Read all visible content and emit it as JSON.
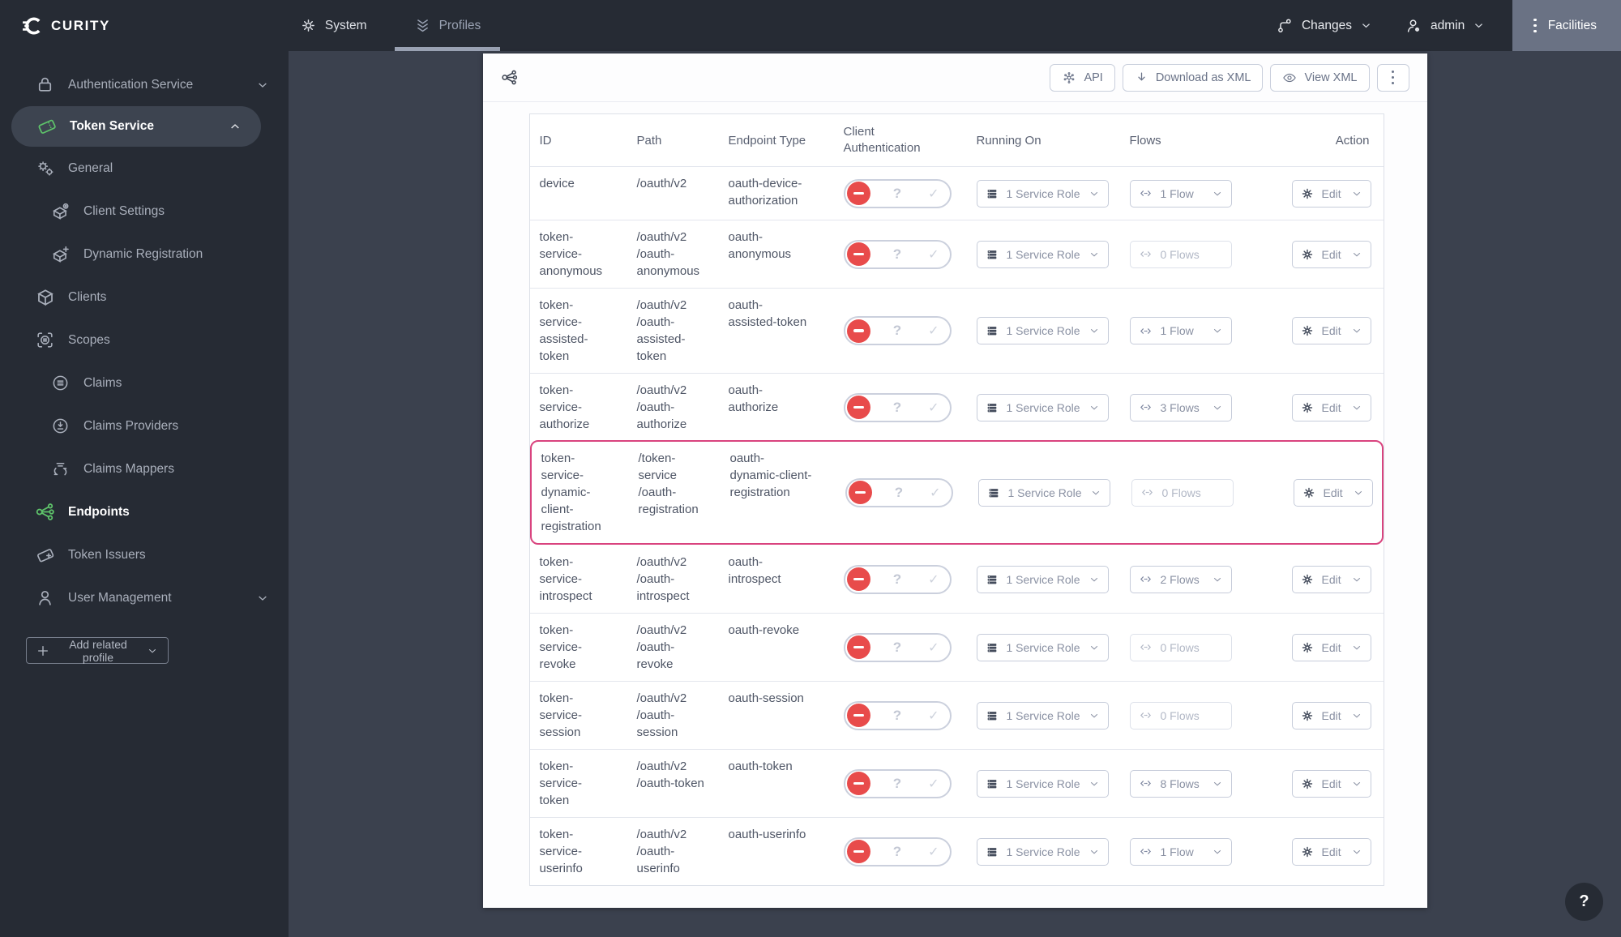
{
  "topnav": {
    "brand": "CURITY",
    "system": "System",
    "profiles": "Profiles",
    "changes": "Changes",
    "user": "admin",
    "facilities": "Facilities"
  },
  "sidebar": {
    "items": [
      {
        "label": "Authentication Service"
      },
      {
        "label": "Token Service"
      },
      {
        "label": "General"
      },
      {
        "label": "Client Settings"
      },
      {
        "label": "Dynamic Registration"
      },
      {
        "label": "Clients"
      },
      {
        "label": "Scopes"
      },
      {
        "label": "Claims"
      },
      {
        "label": "Claims Providers"
      },
      {
        "label": "Claims Mappers"
      },
      {
        "label": "Endpoints"
      },
      {
        "label": "Token Issuers"
      },
      {
        "label": "User Management"
      }
    ],
    "add_related_profile": "Add related profile"
  },
  "toolbar": {
    "api": "API",
    "download_xml": "Download as XML",
    "view_xml": "View XML"
  },
  "table": {
    "headers": {
      "id": "ID",
      "path": "Path",
      "type": "Endpoint Type",
      "client_auth": "Client Authentication",
      "running_on": "Running On",
      "flows": "Flows",
      "action": "Action"
    },
    "edit_label": "Edit",
    "toggle_optional": "?",
    "toggle_check": "✓",
    "rows": [
      {
        "id": "device",
        "path": "/oauth/v2",
        "type": "oauth-device-authorization",
        "running_on": "1 Service Role",
        "flows": "1 Flow",
        "flows_enabled": true,
        "highlight": false
      },
      {
        "id": "token-service-anonymous",
        "path": "/oauth/v2/oauth-anonymous",
        "type": "oauth-anonymous",
        "running_on": "1 Service Role",
        "flows": "0 Flows",
        "flows_enabled": false,
        "highlight": false
      },
      {
        "id": "token-service-assisted-token",
        "path": "/oauth/v2/oauth-assisted-token",
        "type": "oauth-assisted-token",
        "running_on": "1 Service Role",
        "flows": "1 Flow",
        "flows_enabled": true,
        "highlight": false
      },
      {
        "id": "token-service-authorize",
        "path": "/oauth/v2/oauth-authorize",
        "type": "oauth-authorize",
        "running_on": "1 Service Role",
        "flows": "3 Flows",
        "flows_enabled": true,
        "highlight": false
      },
      {
        "id": "token-service-dynamic-client-registration",
        "path": "/token-service/oauth-registration",
        "type": "oauth-dynamic-client-registration",
        "running_on": "1 Service Role",
        "flows": "0 Flows",
        "flows_enabled": false,
        "highlight": true
      },
      {
        "id": "token-service-introspect",
        "path": "/oauth/v2/oauth-introspect",
        "type": "oauth-introspect",
        "running_on": "1 Service Role",
        "flows": "2 Flows",
        "flows_enabled": true,
        "highlight": false
      },
      {
        "id": "token-service-revoke",
        "path": "/oauth/v2/oauth-revoke",
        "type": "oauth-revoke",
        "running_on": "1 Service Role",
        "flows": "0 Flows",
        "flows_enabled": false,
        "highlight": false
      },
      {
        "id": "token-service-session",
        "path": "/oauth/v2/oauth-session",
        "type": "oauth-session",
        "running_on": "1 Service Role",
        "flows": "0 Flows",
        "flows_enabled": false,
        "highlight": false
      },
      {
        "id": "token-service-token",
        "path": "/oauth/v2/oauth-token",
        "type": "oauth-token",
        "running_on": "1 Service Role",
        "flows": "8 Flows",
        "flows_enabled": true,
        "highlight": false
      },
      {
        "id": "token-service-userinfo",
        "path": "/oauth/v2/oauth-userinfo",
        "type": "oauth-userinfo",
        "running_on": "1 Service Role",
        "flows": "1 Flow",
        "flows_enabled": true,
        "highlight": false
      }
    ]
  },
  "help": "?",
  "icons": {
    "kebab": "vertical-dots",
    "toggle_states": [
      "deny",
      "optional",
      "require"
    ],
    "colors": {
      "accent_green": "#5EC36A",
      "danger_red": "#E84B4B",
      "highlight_pink": "#D9437E",
      "navbar_bg": "#262B34",
      "sidebar_bg": "#262B34",
      "main_bg": "#3B414E",
      "facilities_bg": "#6A7284"
    }
  }
}
